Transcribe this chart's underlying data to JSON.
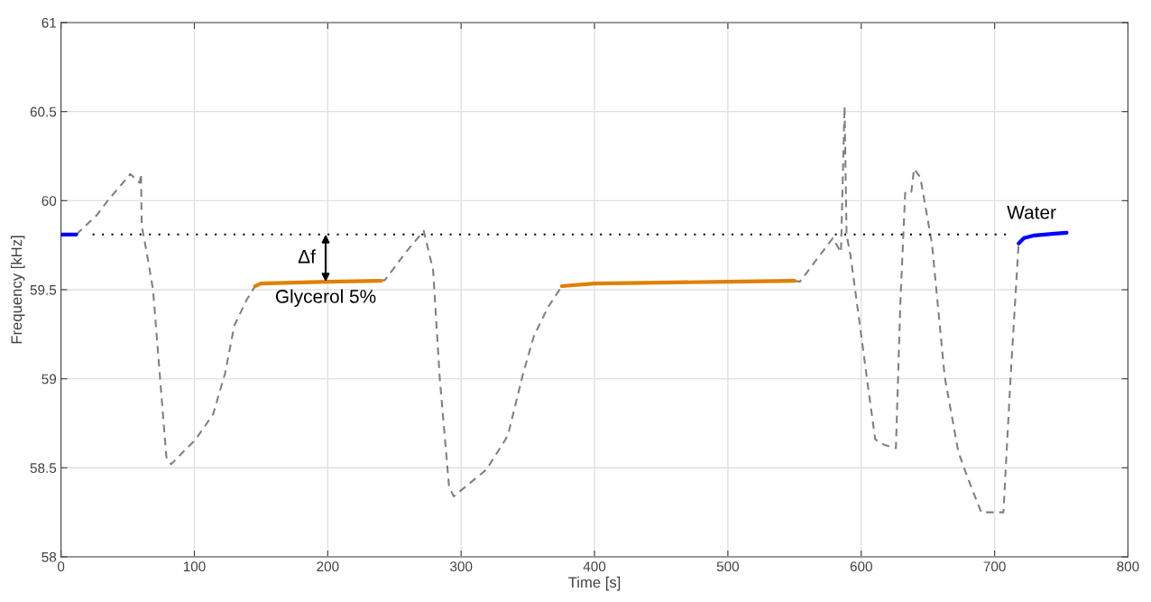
{
  "chart_data": {
    "type": "line",
    "xlabel": "Time [s]",
    "ylabel": "Frequency [kHz]",
    "xlim": [
      0,
      800
    ],
    "ylim": [
      58,
      61
    ],
    "xticks": [
      0,
      100,
      200,
      300,
      400,
      500,
      600,
      700,
      800
    ],
    "yticks": [
      58,
      58.5,
      59,
      59.5,
      60,
      60.5,
      61
    ],
    "grid": true,
    "marker": "none",
    "series": [
      {
        "color": "#808080",
        "line_style": "dashed",
        "x": [
          11.5,
          27,
          35,
          52,
          59,
          60,
          60.5,
          64,
          69,
          74,
          79,
          82.5,
          101,
          114,
          123,
          130,
          139,
          145.5
        ],
        "values": [
          59.81,
          59.92,
          60.0,
          60.15,
          60.1,
          60.15,
          59.86,
          59.72,
          59.5,
          59.03,
          58.56,
          58.52,
          58.66,
          58.8,
          59.03,
          59.3,
          59.44,
          59.52
        ]
      },
      {
        "color": "#808080",
        "line_style": "dashed",
        "x": [
          240,
          243,
          258.5,
          272,
          279,
          284,
          291,
          294.5,
          319,
          335,
          346.5,
          354.6,
          365,
          375.6
        ],
        "values": [
          59.55,
          59.555,
          59.71,
          59.83,
          59.61,
          59.0,
          58.39,
          58.34,
          58.49,
          58.68,
          59.03,
          59.24,
          59.4,
          59.52
        ]
      },
      {
        "color": "#808080",
        "line_style": "dashed",
        "x": [
          550,
          554,
          578.7,
          584.8,
          587.5,
          589,
          592,
          599,
          605,
          610.5,
          617,
          626,
          629.4,
          633,
          637.6,
          639.6,
          644.3,
          653,
          662.6,
          672.8,
          680,
          690,
          706.6,
          712,
          718
        ],
        "values": [
          59.55,
          59.545,
          59.79,
          59.71,
          60.53,
          59.81,
          59.69,
          59.3,
          58.96,
          58.66,
          58.63,
          58.61,
          59.44,
          60.05,
          60.05,
          60.18,
          60.13,
          59.76,
          59.01,
          58.59,
          58.44,
          58.25,
          58.25,
          59.01,
          59.76
        ]
      },
      {
        "color": "#000000",
        "line_style": "dotted",
        "x": [
          23.7,
          708.6
        ],
        "values": [
          59.81,
          59.81
        ]
      },
      {
        "color": "#0000ff",
        "line_style": "solid",
        "x": [
          0,
          11.5
        ],
        "values": [
          59.81,
          59.81
        ]
      },
      {
        "color": "#e08000",
        "line_style": "solid",
        "x": [
          145.5,
          150,
          200,
          240
        ],
        "values": [
          59.52,
          59.535,
          59.545,
          59.55
        ]
      },
      {
        "color": "#e08000",
        "line_style": "solid",
        "x": [
          375.6,
          400,
          450,
          500,
          550
        ],
        "values": [
          59.52,
          59.535,
          59.54,
          59.545,
          59.55
        ]
      },
      {
        "color": "#0000ff",
        "line_style": "solid",
        "x": [
          718,
          722,
          730,
          745,
          754
        ],
        "values": [
          59.76,
          59.79,
          59.805,
          59.815,
          59.82
        ]
      }
    ],
    "annotations": [
      "Δf",
      "Glycerol 5%",
      "Water"
    ]
  }
}
